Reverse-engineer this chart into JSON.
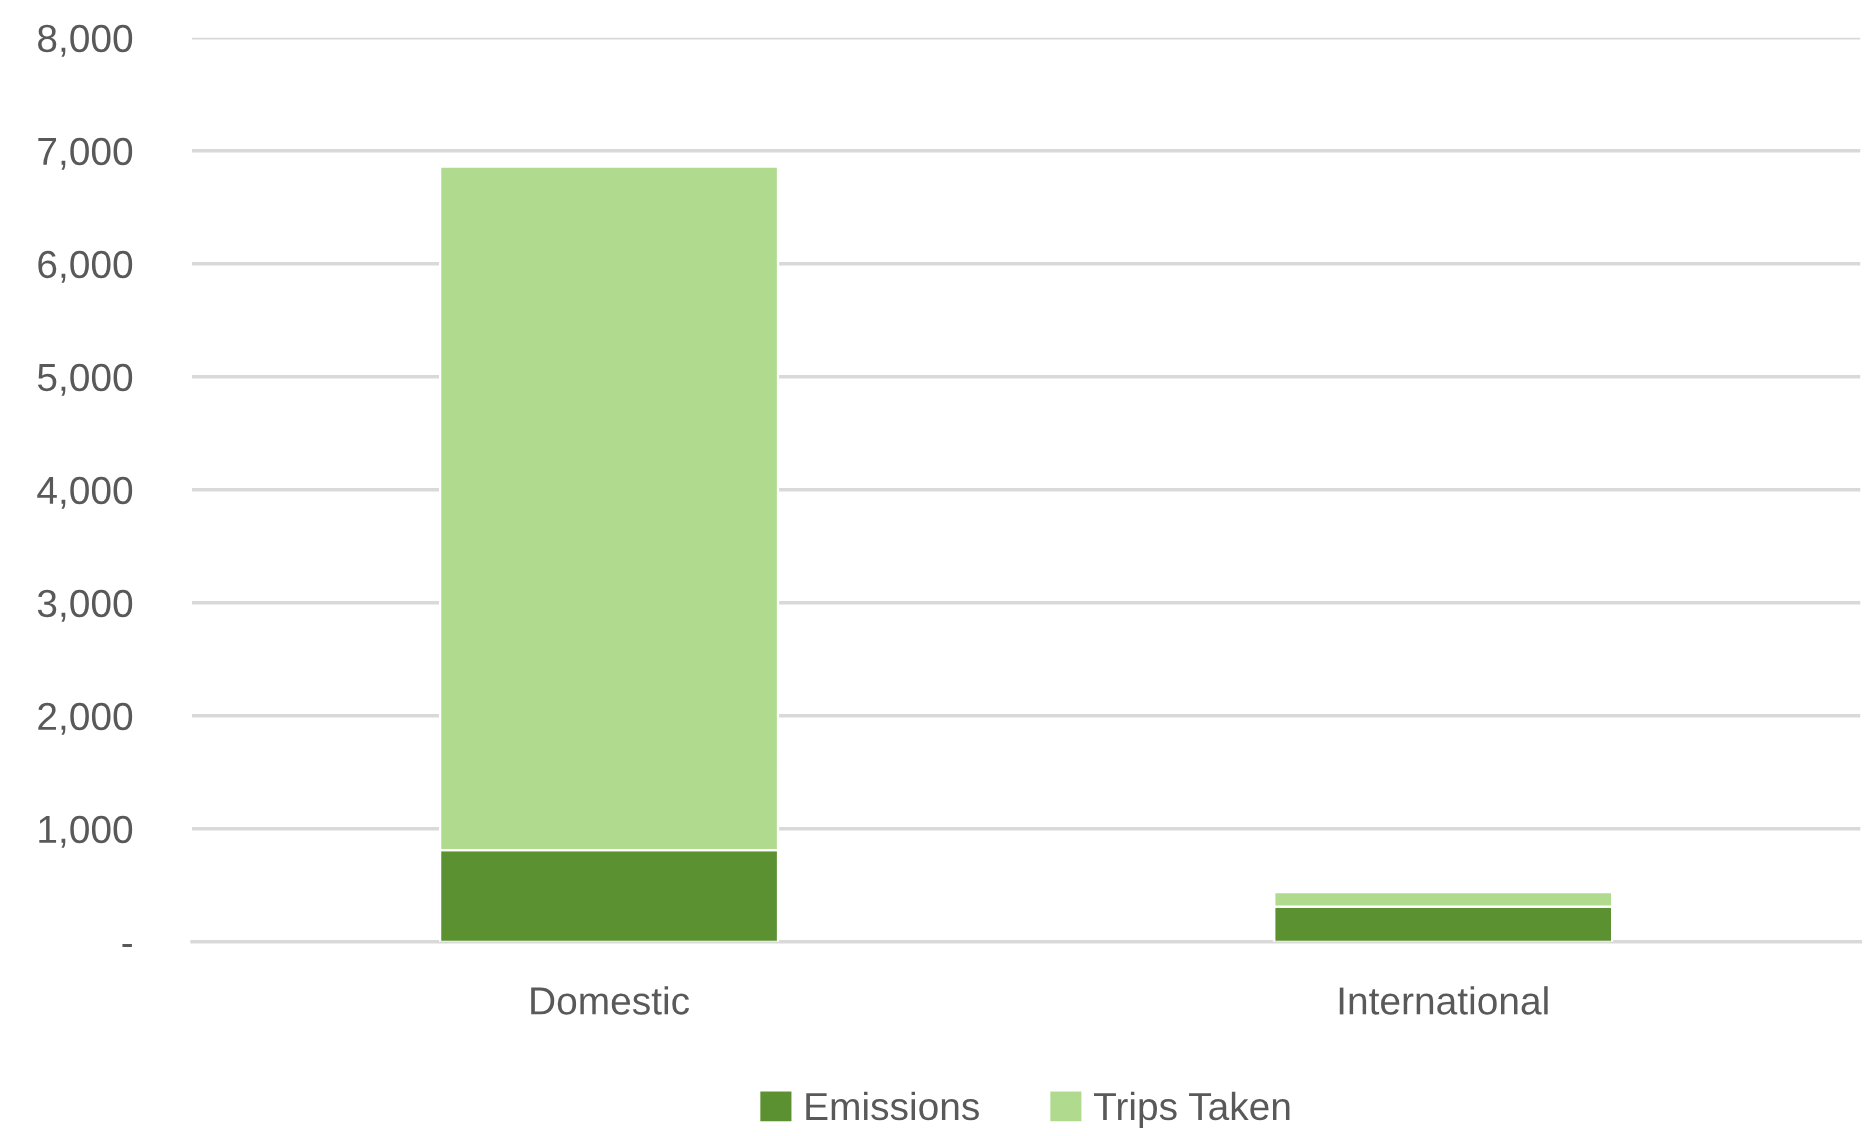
{
  "chart_data": {
    "type": "bar",
    "stacked": true,
    "categories": [
      "Domestic",
      "International"
    ],
    "series": [
      {
        "name": "Emissions",
        "color": "#5b9130",
        "values": [
          810,
          310
        ]
      },
      {
        "name": "Trips Taken",
        "color": "#b0db8f",
        "values": [
          6050,
          130
        ]
      }
    ],
    "ylim": [
      0,
      8000
    ],
    "yticks": [
      {
        "value": 0,
        "label": "-"
      },
      {
        "value": 1000,
        "label": "1,000"
      },
      {
        "value": 2000,
        "label": "2,000"
      },
      {
        "value": 3000,
        "label": "3,000"
      },
      {
        "value": 4000,
        "label": "4,000"
      },
      {
        "value": 5000,
        "label": "5,000"
      },
      {
        "value": 6000,
        "label": "6,000"
      },
      {
        "value": 7000,
        "label": "7,000"
      },
      {
        "value": 8000,
        "label": "8,000"
      }
    ],
    "grid": "y",
    "legend": "bottom"
  }
}
